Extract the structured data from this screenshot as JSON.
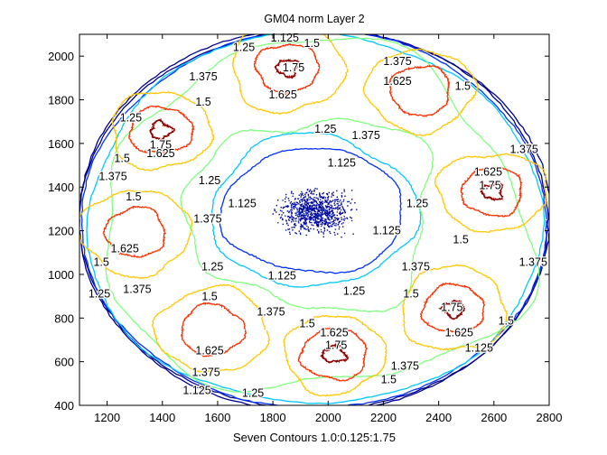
{
  "chart_data": {
    "type": "contour",
    "title": "GM04 norm Layer 2",
    "xlabel": "Seven Contours 1.0:0.125:1.75",
    "ylabel": "",
    "xlim": [
      1100,
      2800
    ],
    "ylim": [
      400,
      2100
    ],
    "xticks": [
      1200,
      1400,
      1600,
      1800,
      2000,
      2200,
      2400,
      2600,
      2800
    ],
    "yticks": [
      400,
      600,
      800,
      1000,
      1200,
      1400,
      1600,
      1800,
      2000
    ],
    "grid": false,
    "levels": [
      1.0,
      1.125,
      1.25,
      1.375,
      1.5,
      1.625,
      1.75
    ],
    "level_colors": {
      "1": "#00008f",
      "1.125": "#0030ff",
      "1.25": "#00c8ff",
      "1.375": "#7fff7f",
      "1.5": "#ffc800",
      "1.625": "#ff3000",
      "1.75": "#8f0000"
    },
    "outer_rings": [
      {
        "level": 1.0,
        "cx": 1950,
        "cy": 1250,
        "rx": 855,
        "ry": 880,
        "wobble": 0.004
      },
      {
        "level": 1.0,
        "cx": 1950,
        "cy": 1250,
        "rx": 848,
        "ry": 872,
        "wobble": 0.004
      },
      {
        "level": 1.125,
        "cx": 1950,
        "cy": 1250,
        "rx": 840,
        "ry": 864,
        "wobble": 0.006
      },
      {
        "level": 1.25,
        "cx": 1950,
        "cy": 1250,
        "rx": 825,
        "ry": 850,
        "wobble": 0.015
      },
      {
        "level": 1.375,
        "cx": 1950,
        "cy": 1250,
        "rx": 770,
        "ry": 800,
        "wobble": 0.06
      }
    ],
    "center_rings": [
      {
        "level": 1.125,
        "cx": 1945,
        "cy": 1290,
        "rx": 330,
        "ry": 285,
        "wobble": 0.03
      },
      {
        "level": 1.25,
        "cx": 1945,
        "cy": 1290,
        "rx": 370,
        "ry": 345,
        "wobble": 0.04
      },
      {
        "level": 1.375,
        "cx": 1945,
        "cy": 1280,
        "rx": 450,
        "ry": 440,
        "wobble": 0.09
      }
    ],
    "center_minimum": {
      "level": 1.0,
      "cx": 1950,
      "cy": 1290,
      "sx": 70,
      "sy": 55
    },
    "peaks": [
      {
        "cx": 1394,
        "cy": 1660,
        "top": 1.75
      },
      {
        "cx": 1852,
        "cy": 1946,
        "top": 1.75
      },
      {
        "cx": 2333,
        "cy": 1843,
        "top": 1.625
      },
      {
        "cx": 2595,
        "cy": 1379,
        "top": 1.75
      },
      {
        "cx": 1303,
        "cy": 1193,
        "top": 1.625
      },
      {
        "cx": 1581,
        "cy": 745,
        "top": 1.625
      },
      {
        "cx": 2022,
        "cy": 634,
        "top": 1.75
      },
      {
        "cx": 2454,
        "cy": 841,
        "top": 1.75
      }
    ],
    "peak_radii": {
      "1.5": 190,
      "1.625": 112,
      "1.75": 38
    },
    "contour_labels": [
      {
        "text": "1.125",
        "x": 1843,
        "y": 2083
      },
      {
        "text": "1.5",
        "x": 1941,
        "y": 2058
      },
      {
        "text": "1.25",
        "x": 1695,
        "y": 2041
      },
      {
        "text": "1.375",
        "x": 1548,
        "y": 1905
      },
      {
        "text": "1.375",
        "x": 2251,
        "y": 1975
      },
      {
        "text": "1.75",
        "x": 1875,
        "y": 1946
      },
      {
        "text": "1.625",
        "x": 1836,
        "y": 1822
      },
      {
        "text": "1.625",
        "x": 2251,
        "y": 1884
      },
      {
        "text": "1.5",
        "x": 2487,
        "y": 1863
      },
      {
        "text": "1.25",
        "x": 1286,
        "y": 1718
      },
      {
        "text": "1.5",
        "x": 1548,
        "y": 1789
      },
      {
        "text": "1.75",
        "x": 1394,
        "y": 1594
      },
      {
        "text": "1.625",
        "x": 1394,
        "y": 1553
      },
      {
        "text": "1.5",
        "x": 1254,
        "y": 1532
      },
      {
        "text": "1.375",
        "x": 1221,
        "y": 1449
      },
      {
        "text": "1.25",
        "x": 1990,
        "y": 1665
      },
      {
        "text": "1.375",
        "x": 2137,
        "y": 1636
      },
      {
        "text": "1.125",
        "x": 2049,
        "y": 1511
      },
      {
        "text": "1.25",
        "x": 1571,
        "y": 1429
      },
      {
        "text": "1.125",
        "x": 1689,
        "y": 1325
      },
      {
        "text": "1.375",
        "x": 1564,
        "y": 1255
      },
      {
        "text": "1.25",
        "x": 2323,
        "y": 1325
      },
      {
        "text": "1.125",
        "x": 2212,
        "y": 1201
      },
      {
        "text": "1.5",
        "x": 1296,
        "y": 1355
      },
      {
        "text": "1.625",
        "x": 1264,
        "y": 1118
      },
      {
        "text": "1.5",
        "x": 1179,
        "y": 1056
      },
      {
        "text": "1.375",
        "x": 1309,
        "y": 932
      },
      {
        "text": "1.25",
        "x": 1172,
        "y": 911
      },
      {
        "text": "1.25",
        "x": 1581,
        "y": 1035
      },
      {
        "text": "1.125",
        "x": 1833,
        "y": 994
      },
      {
        "text": "1.25",
        "x": 2094,
        "y": 924
      },
      {
        "text": "1.375",
        "x": 2317,
        "y": 1035
      },
      {
        "text": "1.5",
        "x": 2480,
        "y": 1159
      },
      {
        "text": "1.625",
        "x": 2579,
        "y": 1470
      },
      {
        "text": "1.75",
        "x": 2586,
        "y": 1408
      },
      {
        "text": "1.375",
        "x": 2709,
        "y": 1573
      },
      {
        "text": "1.375",
        "x": 2742,
        "y": 1056
      },
      {
        "text": "1.5",
        "x": 2300,
        "y": 911
      },
      {
        "text": "1.75",
        "x": 2448,
        "y": 849
      },
      {
        "text": "1.625",
        "x": 2474,
        "y": 733
      },
      {
        "text": "1.5",
        "x": 2644,
        "y": 787
      },
      {
        "text": "1.5",
        "x": 1571,
        "y": 899
      },
      {
        "text": "1.375",
        "x": 1793,
        "y": 828
      },
      {
        "text": "1.625",
        "x": 1571,
        "y": 650
      },
      {
        "text": "1.5",
        "x": 1924,
        "y": 774
      },
      {
        "text": "1.625",
        "x": 2022,
        "y": 733
      },
      {
        "text": "1.75",
        "x": 2029,
        "y": 675
      },
      {
        "text": "1.5",
        "x": 2219,
        "y": 518
      },
      {
        "text": "1.375",
        "x": 2278,
        "y": 580
      },
      {
        "text": "1.375",
        "x": 1558,
        "y": 551
      },
      {
        "text": "1.125",
        "x": 1525,
        "y": 468
      },
      {
        "text": "1.25",
        "x": 1728,
        "y": 456
      },
      {
        "text": "1.125",
        "x": 2546,
        "y": 663
      }
    ]
  }
}
